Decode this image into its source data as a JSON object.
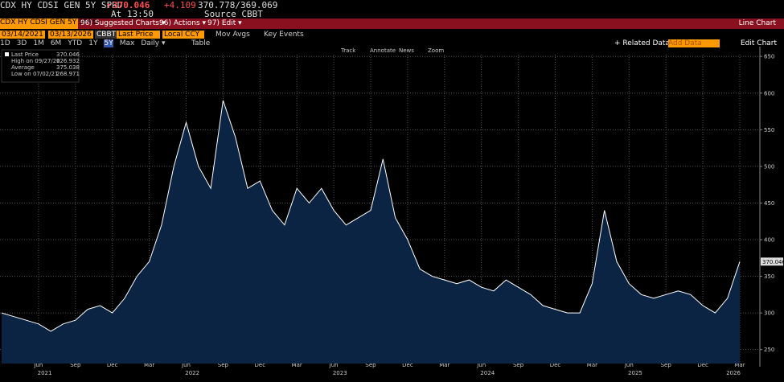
{
  "header": {
    "ticker": "CDX HY CDSI GEN 5Y SPRD",
    "price": "370.046",
    "change": "+4.109",
    "bid_ask": "370.778/369.069",
    "time": "At 13:50",
    "source": "Source CBBT"
  },
  "menu": {
    "suggested": "96) Suggested Charts ▾",
    "actions": "96) Actions ▾",
    "edit": "97) Edit ▾",
    "chart_kind": "Line Chart"
  },
  "controls": {
    "start": "03/14/2021",
    "end": "03/13/2026",
    "source": "CBBT",
    "field": "Last Price",
    "currency": "Local CCY",
    "mov_avgs": "Mov Avgs",
    "key_events": "Key Events",
    "related": "+ Related Data",
    "add_data": "Add Data",
    "edit_chart": "Edit Chart"
  },
  "ranges": [
    "1D",
    "3D",
    "1M",
    "6M",
    "YTD",
    "1Y",
    "5Y",
    "Max"
  ],
  "frequency": "Daily ▾",
  "table": "Table",
  "tools": [
    "Track",
    "Annotate",
    "News",
    "Zoom"
  ],
  "chart_data": {
    "type": "area",
    "x": [
      "2021-03",
      "2021-04",
      "2021-05",
      "2021-06",
      "2021-07",
      "2021-08",
      "2021-09",
      "2021-10",
      "2021-11",
      "2021-12",
      "2022-01",
      "2022-02",
      "2022-03",
      "2022-04",
      "2022-05",
      "2022-06",
      "2022-07",
      "2022-08",
      "2022-09",
      "2022-10",
      "2022-11",
      "2022-12",
      "2023-01",
      "2023-02",
      "2023-03",
      "2023-04",
      "2023-05",
      "2023-06",
      "2023-07",
      "2023-08",
      "2023-09",
      "2023-10",
      "2023-11",
      "2023-12",
      "2024-01",
      "2024-02",
      "2024-03",
      "2024-04",
      "2024-05",
      "2024-06",
      "2024-07",
      "2024-08",
      "2024-09",
      "2024-10",
      "2024-11",
      "2024-12",
      "2025-01",
      "2025-02",
      "2025-03",
      "2025-04",
      "2025-05",
      "2025-06",
      "2025-07",
      "2025-08",
      "2025-09",
      "2025-10",
      "2025-11",
      "2025-12",
      "2026-01",
      "2026-02",
      "2026-03"
    ],
    "series": [
      {
        "name": "Last Price",
        "color": "#ffffff",
        "values": [
          300,
          295,
          290,
          285,
          275,
          285,
          290,
          305,
          310,
          300,
          320,
          350,
          370,
          420,
          500,
          560,
          500,
          470,
          590,
          540,
          470,
          480,
          440,
          420,
          470,
          450,
          470,
          440,
          420,
          430,
          440,
          510,
          430,
          400,
          360,
          350,
          345,
          340,
          345,
          335,
          330,
          345,
          335,
          325,
          310,
          305,
          300,
          300,
          340,
          440,
          370,
          340,
          325,
          320,
          325,
          330,
          325,
          310,
          300,
          320,
          370.046
        ]
      }
    ],
    "area_color": "#0b2444",
    "ylim": [
      231,
      659
    ],
    "yticks": [
      250,
      300,
      350,
      400,
      450,
      500,
      550,
      600,
      650
    ],
    "xticks": [
      {
        "value": "2021-06",
        "label": "Jun"
      },
      {
        "value": "2021-09",
        "label": "Sep"
      },
      {
        "value": "2021-12",
        "label": "Dec"
      },
      {
        "value": "2022-03",
        "label": "Mar"
      },
      {
        "value": "2022-06",
        "label": "Jun"
      },
      {
        "value": "2022-09",
        "label": "Sep"
      },
      {
        "value": "2022-12",
        "label": "Dec"
      },
      {
        "value": "2023-03",
        "label": "Mar"
      },
      {
        "value": "2023-06",
        "label": "Jun"
      },
      {
        "value": "2023-09",
        "label": "Sep"
      },
      {
        "value": "2023-12",
        "label": "Dec"
      },
      {
        "value": "2024-03",
        "label": "Mar"
      },
      {
        "value": "2024-06",
        "label": "Jun"
      },
      {
        "value": "2024-09",
        "label": "Sep"
      },
      {
        "value": "2024-12",
        "label": "Dec"
      },
      {
        "value": "2025-03",
        "label": "Mar"
      },
      {
        "value": "2025-06",
        "label": "Jun"
      },
      {
        "value": "2025-09",
        "label": "Sep"
      },
      {
        "value": "2025-12",
        "label": "Dec"
      },
      {
        "value": "2026-03",
        "label": "Mar"
      }
    ],
    "years": [
      "2021",
      "2022",
      "2023",
      "2024",
      "2025",
      "2026"
    ],
    "grid": true,
    "stats": [
      {
        "label": "High on 09/27/22",
        "value": 626.932
      },
      {
        "label": "Average",
        "value": 375.038
      },
      {
        "label": "Low on 07/02/21",
        "value": 268.971
      }
    ]
  }
}
